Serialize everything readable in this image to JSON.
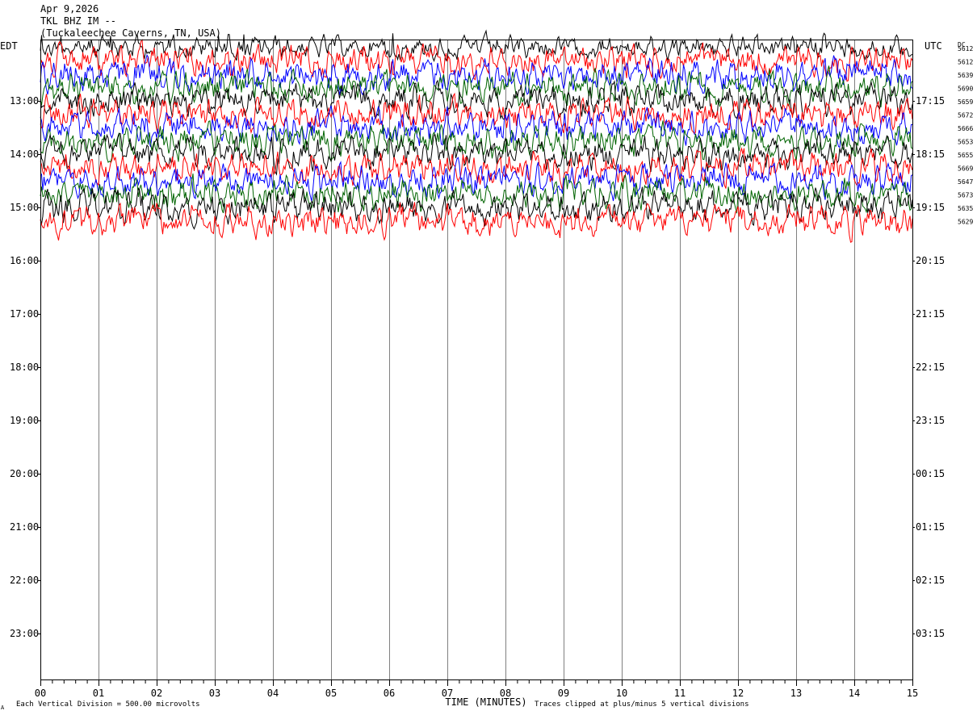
{
  "header": {
    "date": "Apr 9,2026",
    "station": "TKL BHZ IM --",
    "location": "(Tuckaleechee Caverns, TN, USA)"
  },
  "left_timezone": "EDT",
  "right_timezone": "UTC",
  "dc_label": "DC",
  "footer": {
    "vertical_division": "Each Vertical Division =  500.00 microvolts",
    "clip_note": "Traces clipped at plus/minus 5 vertical divisions",
    "corner_mark": "A"
  },
  "chart_data": {
    "type": "line",
    "title": "",
    "xlabel": "TIME (MINUTES)",
    "ylabel": "",
    "xlim": [
      0,
      15
    ],
    "x_ticks": [
      "00",
      "01",
      "02",
      "03",
      "04",
      "05",
      "06",
      "07",
      "08",
      "09",
      "10",
      "11",
      "12",
      "13",
      "14",
      "15"
    ],
    "left_hour_labels": [
      "13:00",
      "14:00",
      "15:00",
      "16:00",
      "17:00",
      "18:00",
      "19:00",
      "20:00",
      "21:00",
      "22:00",
      "23:00"
    ],
    "right_hour_labels": [
      "17:15",
      "18:15",
      "19:15",
      "20:15",
      "21:15",
      "22:15",
      "23:15",
      "00:15",
      "01:15",
      "02:15",
      "03:15"
    ],
    "trace_colors": [
      "#000000",
      "#ff0000",
      "#0000ff",
      "#006400"
    ],
    "dc_offsets": [
      "5612",
      "5612",
      "5639",
      "5690",
      "5659",
      "5672",
      "5666",
      "5653",
      "5655",
      "5669",
      "5647",
      "5673",
      "5635",
      "5629"
    ],
    "trace_count": 14,
    "traces_per_hour": 4,
    "grid": true
  }
}
